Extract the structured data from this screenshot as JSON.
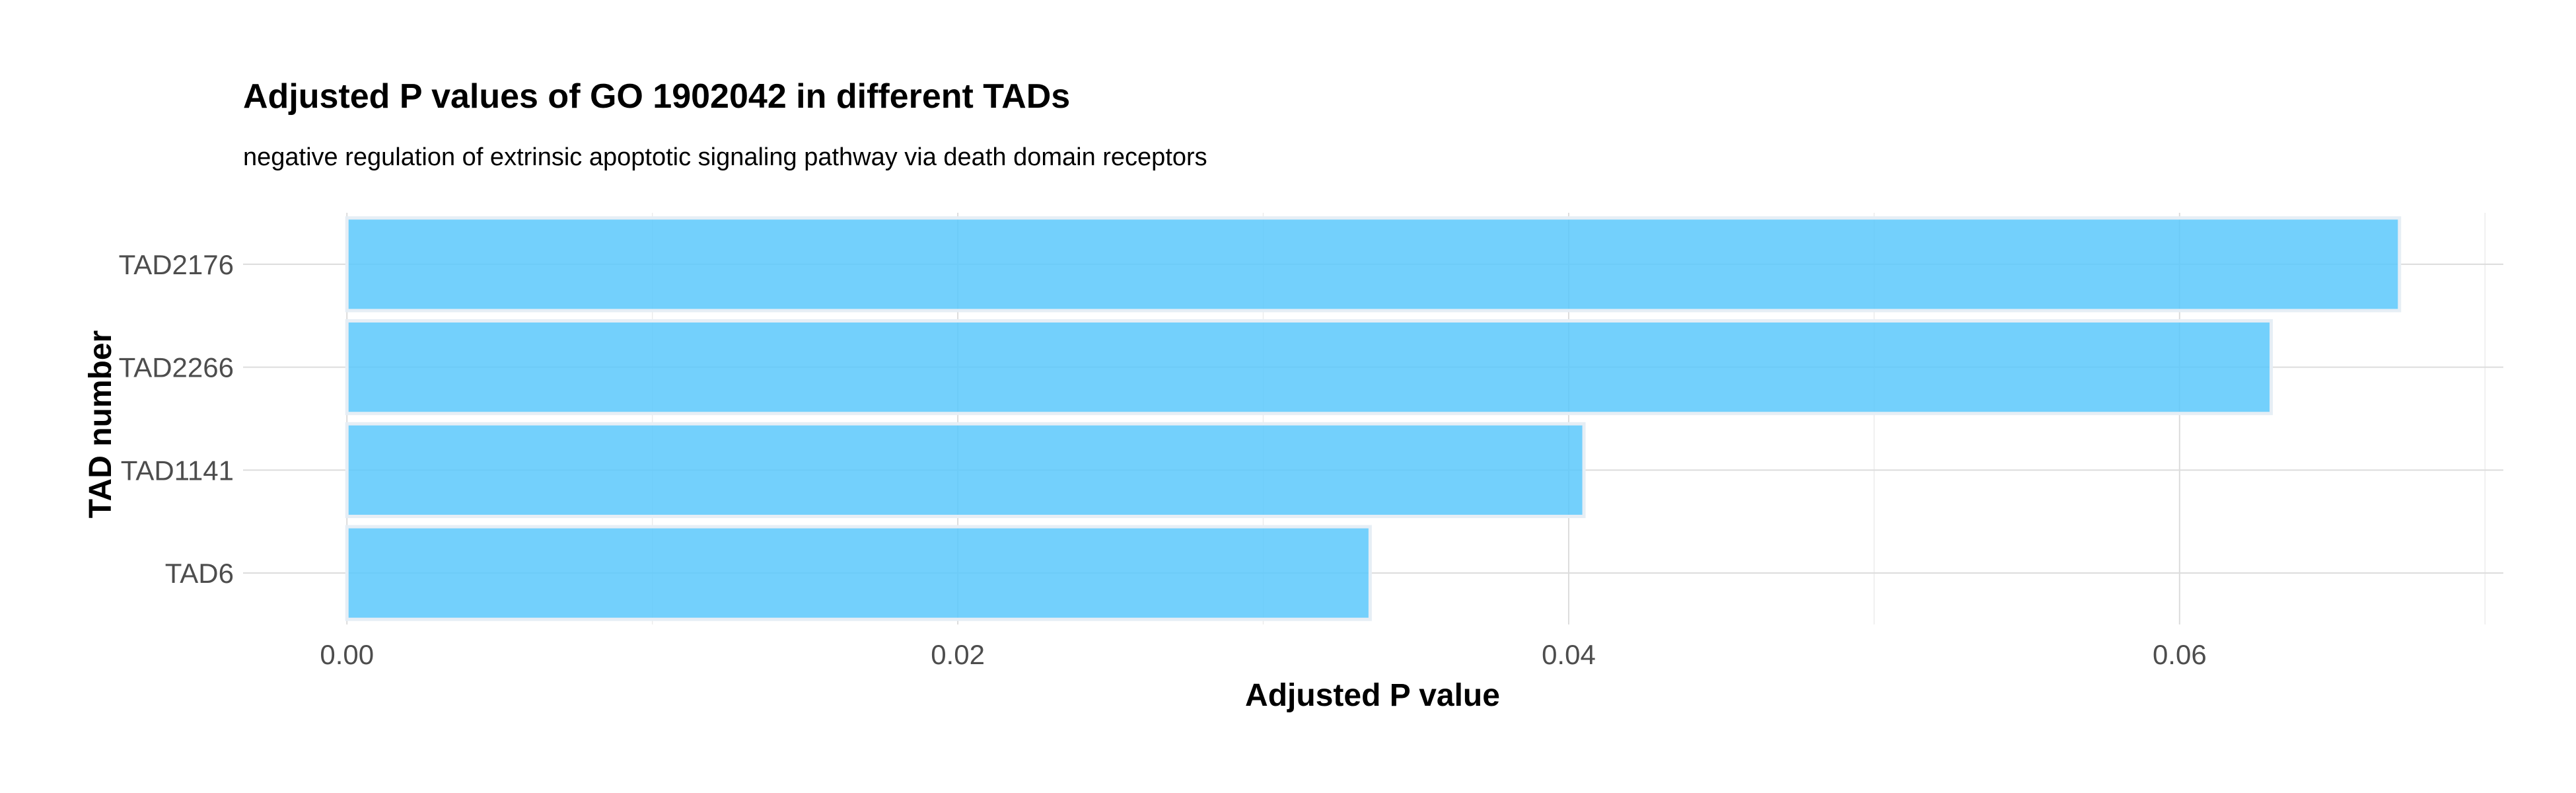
{
  "chart_data": {
    "type": "bar",
    "orientation": "horizontal",
    "title": "Adjusted P values of GO 1902042 in different TADs",
    "subtitle": "negative regulation of extrinsic apoptotic signaling pathway via death domain receptors",
    "xlabel": "Adjusted P value",
    "ylabel": "TAD number",
    "categories": [
      "TAD2176",
      "TAD2266",
      "TAD1141",
      "TAD6"
    ],
    "values": [
      0.0672,
      0.063,
      0.0405,
      0.0335
    ],
    "xlim": [
      -0.0034,
      0.0706
    ],
    "x_ticks": [
      0.0,
      0.02,
      0.04,
      0.06
    ],
    "x_tick_labels": [
      "0.00",
      "0.02",
      "0.04",
      "0.06"
    ],
    "grid": true,
    "legend": "none",
    "bar_color": "#5bc8fb"
  }
}
